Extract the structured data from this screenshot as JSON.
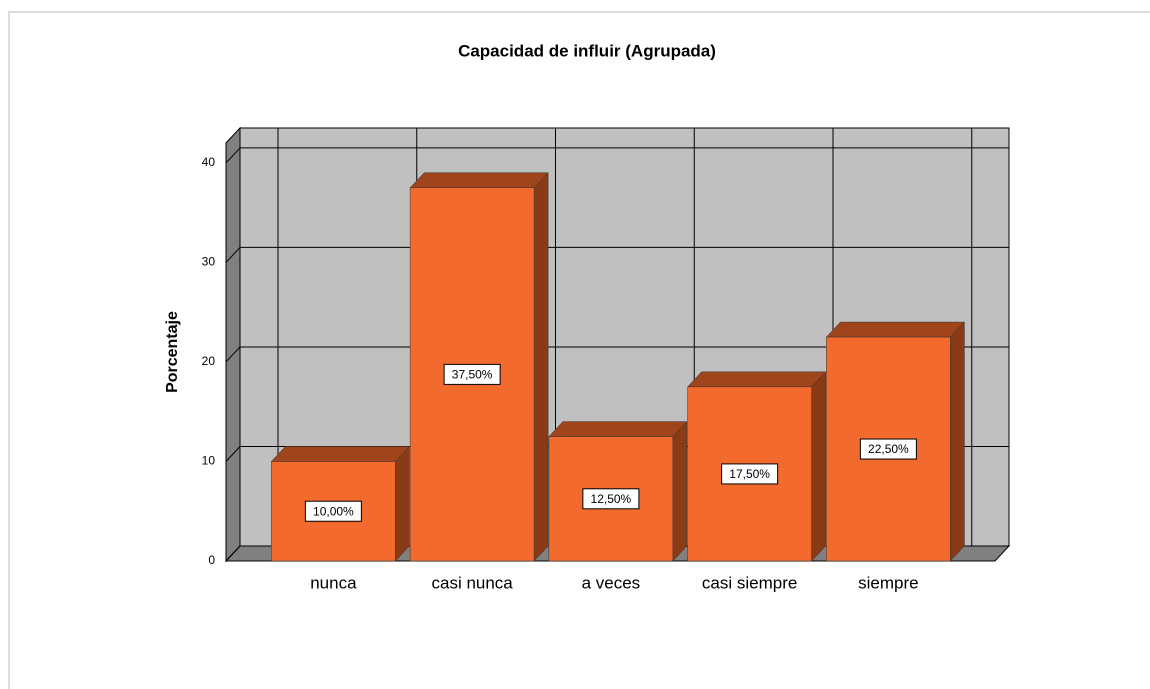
{
  "chart_data": {
    "type": "bar",
    "title": "Capacidad de influir (Agrupada)",
    "y_label": "Porcentaje",
    "categories": [
      "nunca",
      "casi nunca",
      "a veces",
      "casi siempre",
      "siempre"
    ],
    "values": [
      10,
      37.5,
      12.5,
      17.5,
      22.5
    ],
    "value_labels": [
      "10,00%",
      "37,50%",
      "12,50%",
      "17,50%",
      "22,50%"
    ],
    "color": "#f26a2e",
    "ylim": [
      0,
      42
    ],
    "yticks": [
      0,
      10,
      20,
      30,
      40
    ],
    "grid": true
  }
}
